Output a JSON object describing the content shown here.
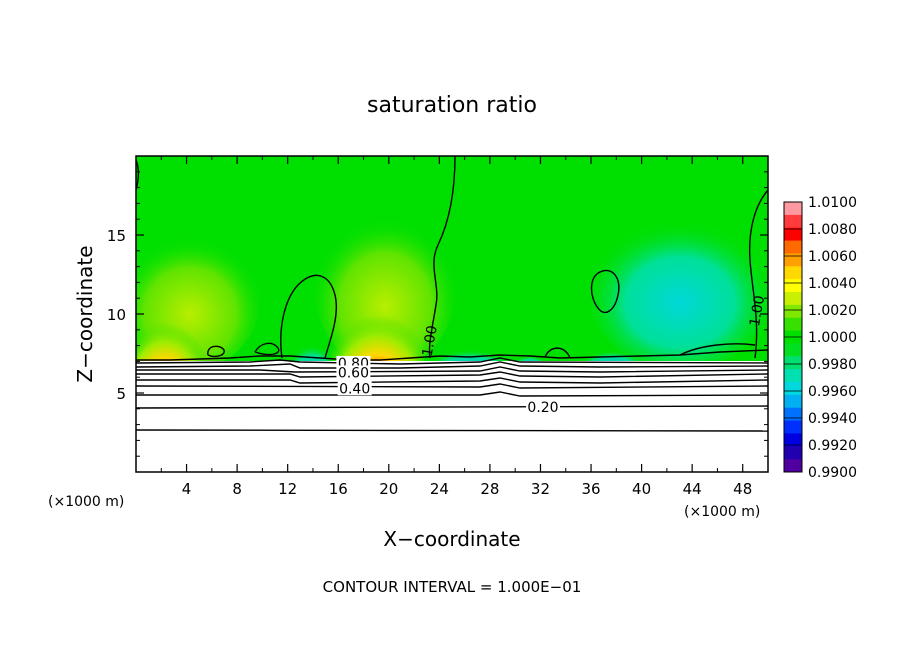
{
  "chart_data": {
    "type": "heatmap",
    "title": "saturation ratio",
    "xlabel": "X−coordinate",
    "ylabel": "Z−coordinate",
    "x_unit_left": "(×1000 m)",
    "x_unit_right": "(×1000 m)",
    "xlim": [
      0,
      50
    ],
    "ylim": [
      0,
      20
    ],
    "x_ticks": [
      4,
      8,
      12,
      16,
      20,
      24,
      28,
      32,
      36,
      40,
      44,
      48
    ],
    "y_ticks": [
      5,
      10,
      15
    ],
    "footer": "CONTOUR INTERVAL = 1.000E−01",
    "colorbar": {
      "min": 0.99,
      "max": 1.01,
      "labels": [
        "1.0100",
        "1.0080",
        "1.0060",
        "1.0040",
        "1.0020",
        "1.0000",
        "0.9980",
        "0.9960",
        "0.9940",
        "0.9920",
        "0.9900"
      ],
      "colors": [
        "#ff9aa0",
        "#ff3b3b",
        "#ff0000",
        "#ff6a00",
        "#ffa000",
        "#ffd800",
        "#ffff00",
        "#c8f000",
        "#80e800",
        "#38e000",
        "#00e000",
        "#00e020",
        "#00e070",
        "#00e0b0",
        "#00d8e0",
        "#00b0f0",
        "#0070ff",
        "#0030ff",
        "#0000e0",
        "#2000b0",
        "#5000a0"
      ]
    },
    "contour_labels": [
      {
        "text": "0.80",
        "x": 17.2,
        "z": 6.9
      },
      {
        "text": "0.60",
        "x": 17.2,
        "z": 6.3
      },
      {
        "text": "0.40",
        "x": 17.3,
        "z": 5.3
      },
      {
        "text": "0.20",
        "x": 32.2,
        "z": 4.1
      },
      {
        "text": "1.00",
        "x": 23.2,
        "z": 8.3,
        "rotate": -80
      },
      {
        "text": "1.00",
        "x": 49.1,
        "z": 10.2,
        "rotate": -80
      }
    ]
  }
}
